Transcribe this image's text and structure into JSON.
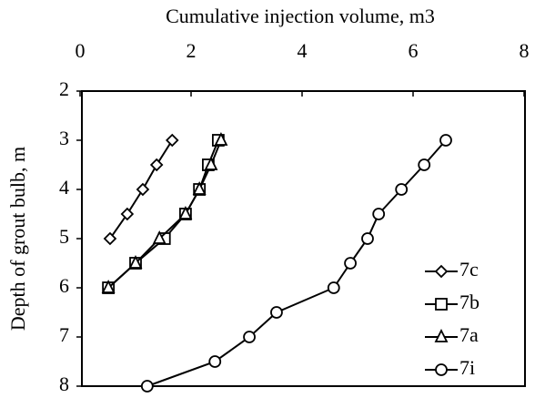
{
  "chart_data": {
    "type": "line",
    "xlabel": "Cumulative injection volume, m3",
    "ylabel": "Depth of grout bulb, m",
    "xaxis_position": "top",
    "y_inverted": true,
    "xlim": [
      0,
      8
    ],
    "xticks": [
      0,
      2,
      4,
      6,
      8
    ],
    "ylim": [
      2,
      8
    ],
    "yticks": [
      2,
      3,
      4,
      5,
      6,
      7,
      8
    ],
    "legend": "lower right",
    "series": [
      {
        "name": "7c",
        "marker": "diamond",
        "color": "#000000",
        "x": [
          1.66,
          1.38,
          1.13,
          0.85,
          0.54
        ],
        "values": [
          3,
          3.5,
          4,
          4.5,
          5
        ]
      },
      {
        "name": "7b",
        "marker": "square",
        "color": "#000000",
        "x": [
          2.49,
          2.31,
          2.15,
          1.9,
          1.52,
          1.0,
          0.51
        ],
        "values": [
          3,
          3.5,
          4,
          4.5,
          5,
          5.5,
          6
        ]
      },
      {
        "name": "7a",
        "marker": "triangle",
        "color": "#000000",
        "x": [
          2.54,
          2.36,
          2.15,
          1.9,
          1.43,
          1.0,
          0.51
        ],
        "values": [
          3,
          3.5,
          4,
          4.5,
          5,
          5.5,
          6
        ]
      },
      {
        "name": "7i",
        "marker": "circle",
        "color": "#000000",
        "x": [
          6.59,
          6.2,
          5.79,
          5.38,
          5.18,
          4.87,
          4.57,
          3.54,
          3.05,
          2.43,
          1.21
        ],
        "values": [
          3,
          3.5,
          4,
          4.5,
          5,
          5.5,
          6,
          6.5,
          7,
          7.5,
          8
        ]
      }
    ]
  }
}
